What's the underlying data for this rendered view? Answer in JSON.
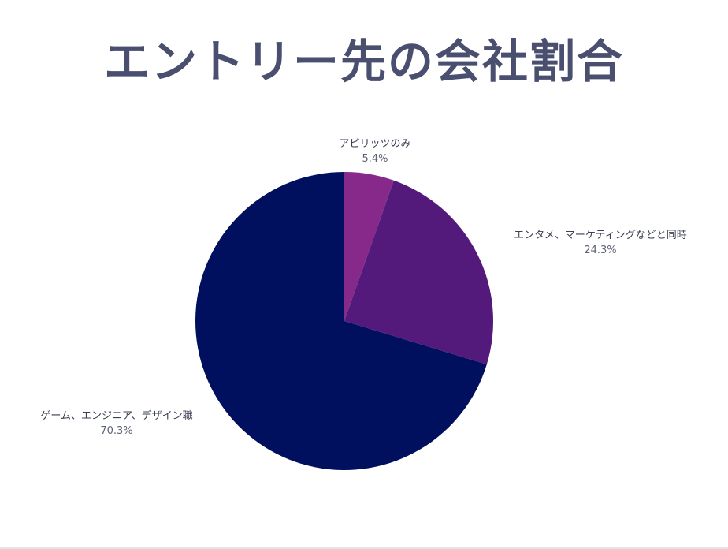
{
  "chart_data": {
    "type": "pie",
    "title": "エントリー先の会社割合",
    "slices": [
      {
        "label": "アピリッツのみ",
        "value": 5.4,
        "value_label": "5.4%",
        "color": "#86298a"
      },
      {
        "label": "エンタメ、マーケティングなどと同時",
        "value": 24.3,
        "value_label": "24.3%",
        "color": "#531a7b"
      },
      {
        "label": "ゲーム、エンジニア、デザイン職",
        "value": 70.3,
        "value_label": "70.3%",
        "color": "#00105f"
      }
    ],
    "start_angle_deg": 0,
    "direction": "clockwise"
  }
}
